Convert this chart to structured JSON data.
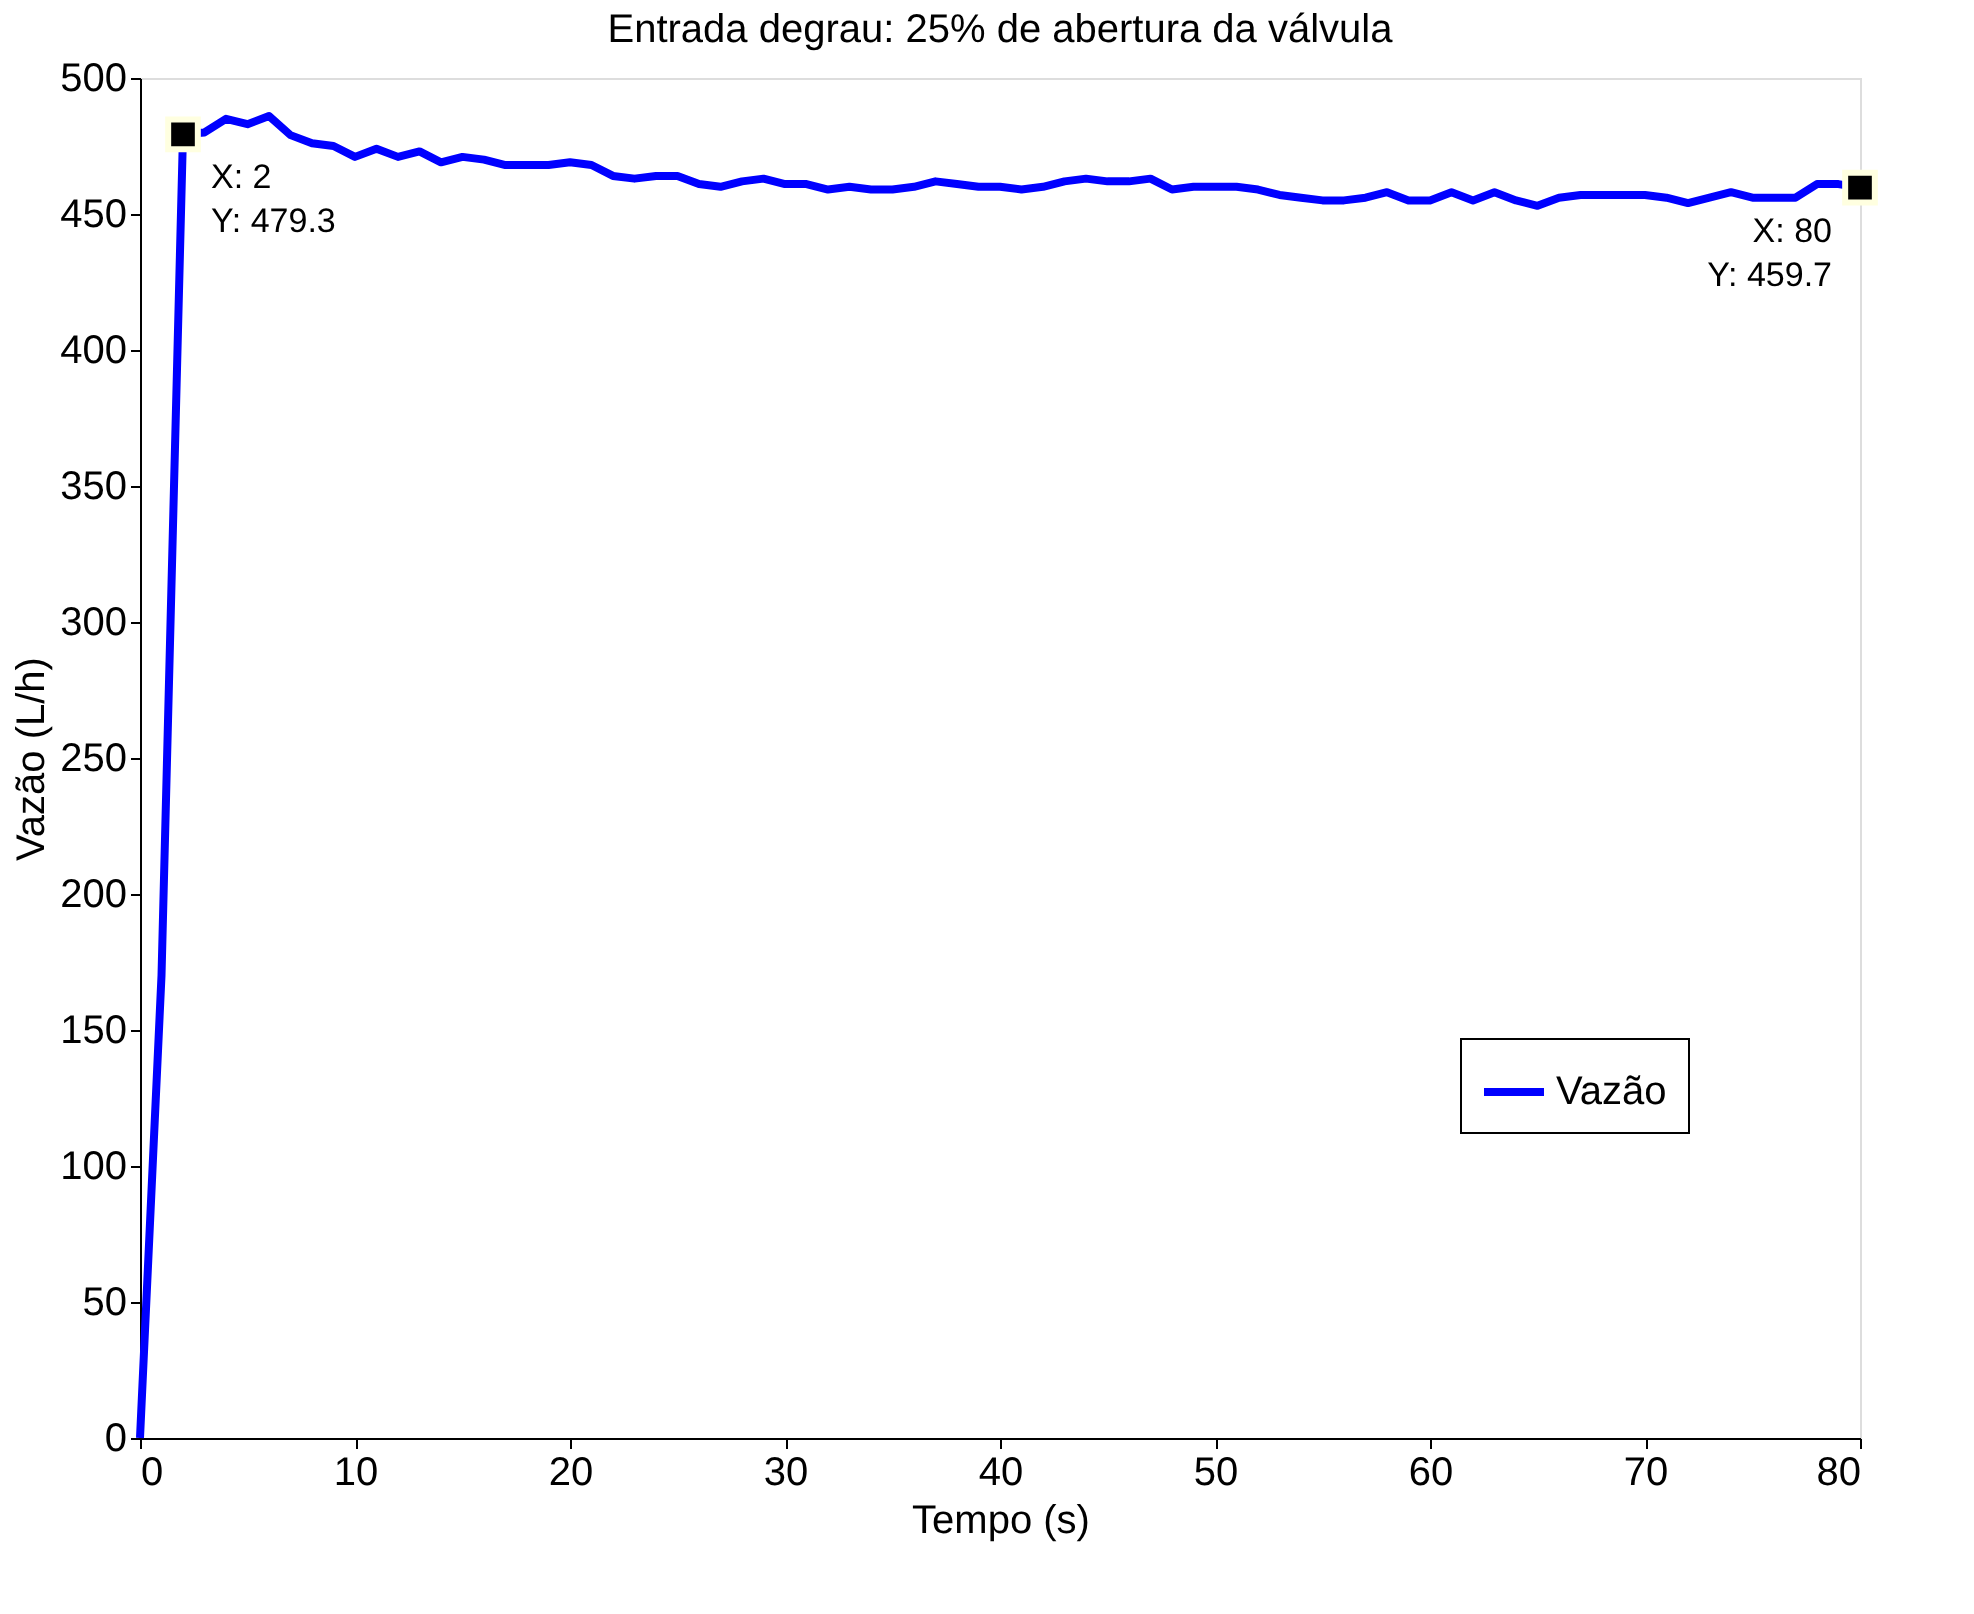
{
  "chart_data": {
    "type": "line",
    "title": "Entrada degrau: 25% de abertura da válvula",
    "xlabel": "Tempo (s)",
    "ylabel": "Vazão (L/h)",
    "x": [
      0,
      1,
      2,
      3,
      4,
      5,
      6,
      7,
      8,
      9,
      10,
      11,
      12,
      13,
      14,
      15,
      16,
      17,
      18,
      19,
      20,
      21,
      22,
      23,
      24,
      25,
      26,
      27,
      28,
      29,
      30,
      31,
      32,
      33,
      34,
      35,
      36,
      37,
      38,
      39,
      40,
      41,
      42,
      43,
      44,
      45,
      46,
      47,
      48,
      49,
      50,
      51,
      52,
      53,
      54,
      55,
      56,
      57,
      58,
      59,
      60,
      61,
      62,
      63,
      64,
      65,
      66,
      67,
      68,
      69,
      70,
      71,
      72,
      73,
      74,
      75,
      76,
      77,
      78,
      79,
      80
    ],
    "series": [
      {
        "name": "Vazão",
        "color": "#0000ff",
        "values": [
          0,
          170,
          479.3,
          480,
          485,
          483,
          486,
          479,
          476,
          475,
          471,
          474,
          471,
          473,
          469,
          471,
          470,
          468,
          468,
          468,
          469,
          468,
          464,
          463,
          464,
          464,
          461,
          460,
          462,
          463,
          461,
          461,
          459,
          460,
          459,
          459,
          460,
          462,
          461,
          460,
          460,
          459,
          460,
          462,
          463,
          462,
          462,
          463,
          459,
          460,
          460,
          460,
          459,
          457,
          456,
          455,
          455,
          456,
          458,
          455,
          455,
          458,
          455,
          458,
          455,
          453,
          456,
          457,
          457,
          457,
          457,
          456,
          454,
          456,
          458,
          456,
          456,
          456,
          461,
          461,
          459.7
        ]
      }
    ],
    "annotations": [
      {
        "text": "X: 2\nY: 479.3",
        "x": 2,
        "y": 479.3
      },
      {
        "text": "X: 80\nY: 459.7",
        "x": 80,
        "y": 459.7
      }
    ],
    "xlim": [
      0,
      80
    ],
    "xticks": [
      0,
      10,
      20,
      30,
      40,
      50,
      60,
      70,
      80
    ],
    "ylim": [
      0,
      500
    ],
    "yticks": [
      0,
      50,
      100,
      150,
      200,
      250,
      300,
      350,
      400,
      450,
      500
    ],
    "legend": "bottom right",
    "grid": false,
    "line_style": "solid",
    "marker": "none"
  }
}
